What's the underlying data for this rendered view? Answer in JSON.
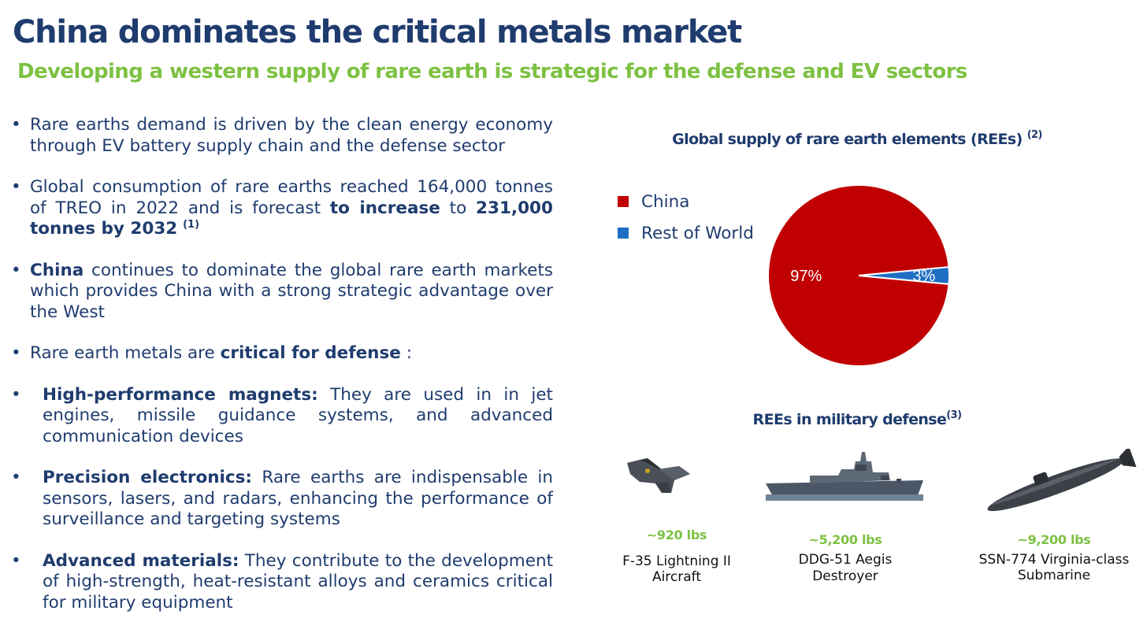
{
  "header": {
    "title": "China dominates the critical metals market",
    "subtitle": "Developing a western supply of rare earth is strategic for the defense and EV sectors"
  },
  "bullets": {
    "b1": {
      "text": "Rare earths demand is driven by the clean energy economy through EV battery supply chain and the defense sector"
    },
    "b2": {
      "text_a": "Global consumption of rare earths reached 164,000 tonnes of TREO in 2022 and is forecast ",
      "bold_a": "to increase",
      "text_b": " to ",
      "bold_b": "231,000 tonnes by 2032",
      "sup": "(1)"
    },
    "b3": {
      "bold": "China",
      "text": " continues to dominate the  global rare earth markets which provides China with a strong strategic advantage over the West"
    },
    "b4": {
      "text_a": "Rare earth metals are ",
      "bold": "critical for defense",
      "text_b": " :"
    },
    "sub1": {
      "bold": "High-performance magnets:",
      "text": " They are used in in jet engines, missile guidance systems, and advanced communication devices"
    },
    "sub2": {
      "bold": "Precision electronics:",
      "text": " Rare earths are indispensable in sensors, lasers, and radars, enhancing the performance of surveillance and targeting systems"
    },
    "sub3": {
      "bold": "Advanced materials:",
      "text": " They contribute to the development of high-strength, heat-resistant alloys and ceramics critical for military equipment"
    },
    "dot": "•"
  },
  "chart_data": {
    "type": "pie",
    "title": "Global supply of rare earth elements (REEs)",
    "title_sup": "(2)",
    "labels": [
      "China",
      "Rest of World"
    ],
    "values": [
      97,
      3
    ],
    "value_labels": [
      "97%",
      "3%"
    ],
    "colors": [
      "#c00000",
      "#1f6ec4"
    ],
    "legend_position": "left"
  },
  "defense": {
    "title": "REEs in military defense",
    "title_sup": "(3)",
    "items": [
      {
        "weight": "~920 lbs",
        "name_line1": "F-35 Lightning II",
        "name_line2": "Aircraft",
        "icon": "fighter-jet-icon"
      },
      {
        "weight": "~5,200 lbs",
        "name_line1": "DDG-51 Aegis",
        "name_line2": "Destroyer",
        "icon": "destroyer-ship-icon"
      },
      {
        "weight": "~9,200 lbs",
        "name_line1": "SSN-774 Virginia-class",
        "name_line2": "Submarine",
        "icon": "submarine-icon"
      }
    ]
  }
}
